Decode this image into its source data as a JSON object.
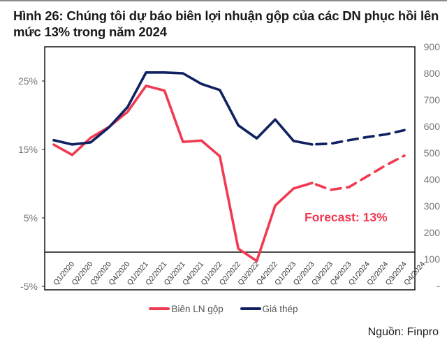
{
  "title": "Hình 26: Chúng tôi dự báo biên lợi nhuận gộp của các DN phục hồi lên mức 13% trong năm 2024",
  "source": "Nguồn: Finpro",
  "annotation": {
    "text": "Forecast: 13%",
    "color": "#f03a52"
  },
  "legend": [
    {
      "label": "Biên LN gộp",
      "color": "#f03a52"
    },
    {
      "label": "Giá thép",
      "color": "#0f2160"
    }
  ],
  "chart_data": {
    "type": "line",
    "title": "Hình 26: Chúng tôi dự báo biên lợi nhuận gộp của các DN phục hồi lên mức 13% trong năm 2024",
    "xlabel": "",
    "ylabel": "",
    "categories": [
      "Q1/2020",
      "Q2/2020",
      "Q3/2020",
      "Q4/2020",
      "Q1/2021",
      "Q2/2021",
      "Q3/2021",
      "Q4/2021",
      "Q1/2022",
      "Q2/2022",
      "Q3/2022",
      "Q4/2022",
      "Q1/2023",
      "Q2/2023",
      "Q3/2023",
      "Q4/2023",
      "Q1/2024",
      "Q2/2024",
      "Q3/2024",
      "Q4/2024"
    ],
    "series": [
      {
        "name": "Biên LN gộp",
        "axis": "left",
        "unit": "%",
        "color": "#f03a52",
        "values": [
          15.7,
          14.2,
          16.7,
          18.3,
          20.5,
          24.3,
          23.6,
          16.1,
          16.3,
          14.0,
          0.5,
          -1.3,
          6.8,
          9.3,
          10.1,
          9.1,
          9.5,
          11.1,
          12.7,
          14.1
        ],
        "forecast_from_index": 14
      },
      {
        "name": "Giá thép",
        "axis": "right",
        "color": "#0f2160",
        "values": [
          548,
          532,
          540,
          597,
          673,
          803,
          803,
          800,
          760,
          737,
          604,
          555,
          626,
          545,
          532,
          535,
          548,
          560,
          570,
          586
        ],
        "forecast_from_index": 14
      }
    ],
    "y_left": {
      "ticks": [
        "25%",
        "15%",
        "5%",
        "-5%"
      ],
      "tick_values": [
        25,
        15,
        5,
        -5
      ],
      "ylim": [
        -5,
        30
      ]
    },
    "y_right": {
      "ticks": [
        "900",
        "800",
        "700",
        "600",
        "500",
        "400",
        "300",
        "200",
        "100",
        "-"
      ],
      "tick_values": [
        900,
        800,
        700,
        600,
        500,
        400,
        300,
        200,
        100,
        0
      ],
      "ylim": [
        0,
        900
      ]
    },
    "grid": false,
    "legend_position": "bottom",
    "annotations": [
      "Forecast: 13%"
    ]
  }
}
